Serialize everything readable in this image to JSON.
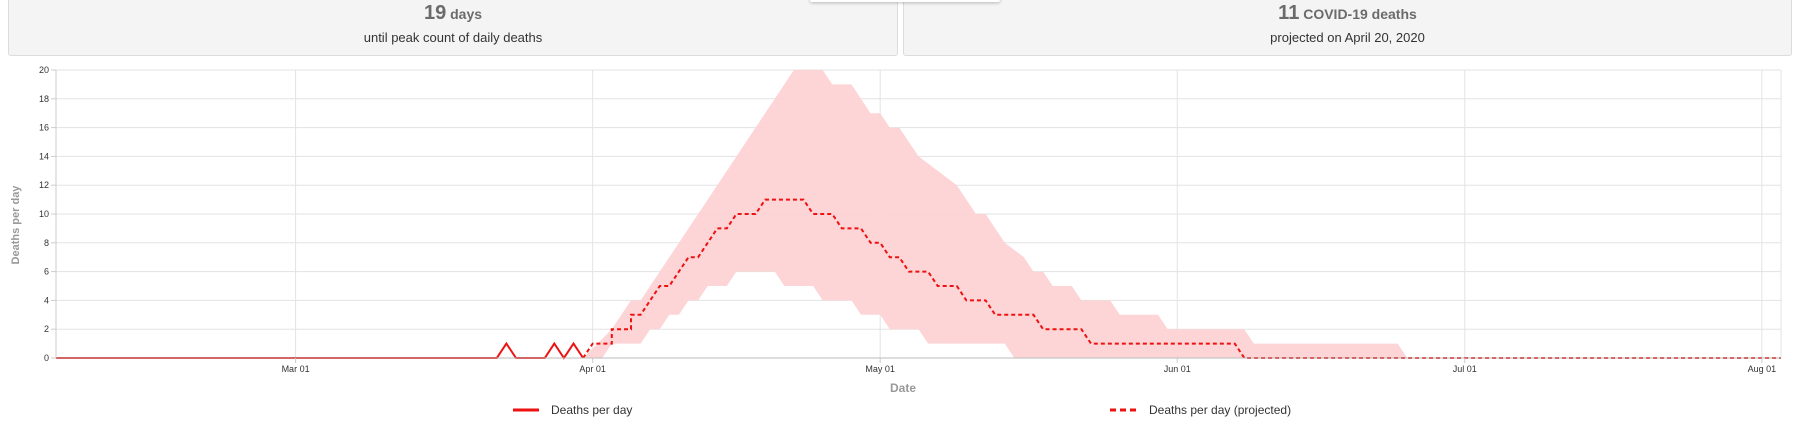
{
  "cards": [
    {
      "value": "19",
      "unit": "days",
      "caption": "until peak count of daily deaths"
    },
    {
      "value": "11",
      "unit": "COVID-19 deaths",
      "caption": "projected on April 20, 2020"
    }
  ],
  "colors": {
    "observed": "#ee1111",
    "projected": "#ee1111",
    "band": "#fdd3d5",
    "grid": "#e3e3e3",
    "axis": "#999999"
  },
  "chart_data": {
    "type": "line",
    "xlabel": "Date",
    "ylabel": "Deaths per day",
    "ylim": [
      0,
      20
    ],
    "yticks": [
      0,
      2,
      4,
      6,
      8,
      10,
      12,
      14,
      16,
      18,
      20
    ],
    "xlim": [
      "2020-02-05",
      "2020-08-03"
    ],
    "xticks": [
      {
        "date": "2020-03-01",
        "label": "Mar 01"
      },
      {
        "date": "2020-04-01",
        "label": "Apr 01"
      },
      {
        "date": "2020-05-01",
        "label": "May 01"
      },
      {
        "date": "2020-06-01",
        "label": "Jun 01"
      },
      {
        "date": "2020-07-01",
        "label": "Jul 01"
      },
      {
        "date": "2020-08-01",
        "label": "Aug 01"
      }
    ],
    "grid": true,
    "legend": "bottom",
    "series": [
      {
        "name": "Deaths per day",
        "style": "solid",
        "points": [
          [
            "2020-02-05",
            0
          ],
          [
            "2020-03-22",
            0
          ],
          [
            "2020-03-23",
            1
          ],
          [
            "2020-03-24",
            0
          ],
          [
            "2020-03-27",
            0
          ],
          [
            "2020-03-28",
            1
          ],
          [
            "2020-03-29",
            0
          ],
          [
            "2020-03-30",
            1
          ],
          [
            "2020-03-31",
            0
          ]
        ]
      },
      {
        "name": "Deaths per day (projected)",
        "style": "dashed",
        "points": [
          [
            "2020-03-31",
            0
          ],
          [
            "2020-04-01",
            1
          ],
          [
            "2020-04-03",
            1
          ],
          [
            "2020-04-03",
            2
          ],
          [
            "2020-04-05",
            2
          ],
          [
            "2020-04-05",
            3
          ],
          [
            "2020-04-06",
            3
          ],
          [
            "2020-04-07",
            4
          ],
          [
            "2020-04-08",
            5
          ],
          [
            "2020-04-09",
            5
          ],
          [
            "2020-04-10",
            6
          ],
          [
            "2020-04-11",
            7
          ],
          [
            "2020-04-12",
            7
          ],
          [
            "2020-04-13",
            8
          ],
          [
            "2020-04-14",
            9
          ],
          [
            "2020-04-15",
            9
          ],
          [
            "2020-04-16",
            10
          ],
          [
            "2020-04-18",
            10
          ],
          [
            "2020-04-19",
            11
          ],
          [
            "2020-04-23",
            11
          ],
          [
            "2020-04-24",
            10
          ],
          [
            "2020-04-26",
            10
          ],
          [
            "2020-04-27",
            9
          ],
          [
            "2020-04-29",
            9
          ],
          [
            "2020-04-30",
            8
          ],
          [
            "2020-05-01",
            8
          ],
          [
            "2020-05-02",
            7
          ],
          [
            "2020-05-03",
            7
          ],
          [
            "2020-05-04",
            6
          ],
          [
            "2020-05-06",
            6
          ],
          [
            "2020-05-07",
            5
          ],
          [
            "2020-05-09",
            5
          ],
          [
            "2020-05-10",
            4
          ],
          [
            "2020-05-12",
            4
          ],
          [
            "2020-05-13",
            3
          ],
          [
            "2020-05-17",
            3
          ],
          [
            "2020-05-18",
            2
          ],
          [
            "2020-05-22",
            2
          ],
          [
            "2020-05-23",
            1
          ],
          [
            "2020-06-07",
            1
          ],
          [
            "2020-06-08",
            0
          ],
          [
            "2020-08-03",
            0
          ]
        ]
      }
    ],
    "uncertainty_band": {
      "upper": [
        [
          "2020-03-31",
          0
        ],
        [
          "2020-04-03",
          2
        ],
        [
          "2020-04-04",
          3
        ],
        [
          "2020-04-05",
          4
        ],
        [
          "2020-04-06",
          4
        ],
        [
          "2020-04-11",
          9
        ],
        [
          "2020-04-13",
          11
        ],
        [
          "2020-04-18",
          16
        ],
        [
          "2020-04-20",
          18
        ],
        [
          "2020-04-21",
          19
        ],
        [
          "2020-04-22",
          20
        ],
        [
          "2020-04-25",
          20
        ],
        [
          "2020-04-26",
          19
        ],
        [
          "2020-04-28",
          19
        ],
        [
          "2020-04-29",
          18
        ],
        [
          "2020-04-30",
          17
        ],
        [
          "2020-05-01",
          17
        ],
        [
          "2020-05-02",
          16
        ],
        [
          "2020-05-03",
          16
        ],
        [
          "2020-05-05",
          14
        ],
        [
          "2020-05-07",
          13
        ],
        [
          "2020-05-09",
          12
        ],
        [
          "2020-05-10",
          11
        ],
        [
          "2020-05-11",
          10
        ],
        [
          "2020-05-12",
          10
        ],
        [
          "2020-05-13",
          9
        ],
        [
          "2020-05-14",
          8
        ],
        [
          "2020-05-16",
          7
        ],
        [
          "2020-05-17",
          6
        ],
        [
          "2020-05-18",
          6
        ],
        [
          "2020-05-19",
          5
        ],
        [
          "2020-05-21",
          5
        ],
        [
          "2020-05-22",
          4
        ],
        [
          "2020-05-25",
          4
        ],
        [
          "2020-05-26",
          3
        ],
        [
          "2020-05-30",
          3
        ],
        [
          "2020-05-31",
          2
        ],
        [
          "2020-06-08",
          2
        ],
        [
          "2020-06-09",
          1
        ],
        [
          "2020-06-24",
          1
        ],
        [
          "2020-06-25",
          0
        ]
      ],
      "lower": [
        [
          "2020-03-31",
          0
        ],
        [
          "2020-04-02",
          0
        ],
        [
          "2020-04-03",
          1
        ],
        [
          "2020-04-06",
          1
        ],
        [
          "2020-04-07",
          2
        ],
        [
          "2020-04-08",
          2
        ],
        [
          "2020-04-09",
          3
        ],
        [
          "2020-04-10",
          3
        ],
        [
          "2020-04-11",
          4
        ],
        [
          "2020-04-12",
          4
        ],
        [
          "2020-04-13",
          5
        ],
        [
          "2020-04-15",
          5
        ],
        [
          "2020-04-16",
          6
        ],
        [
          "2020-04-20",
          6
        ],
        [
          "2020-04-21",
          5
        ],
        [
          "2020-04-24",
          5
        ],
        [
          "2020-04-25",
          4
        ],
        [
          "2020-04-28",
          4
        ],
        [
          "2020-04-29",
          3
        ],
        [
          "2020-05-01",
          3
        ],
        [
          "2020-05-02",
          2
        ],
        [
          "2020-05-05",
          2
        ],
        [
          "2020-05-06",
          1
        ],
        [
          "2020-05-14",
          1
        ],
        [
          "2020-05-15",
          0
        ]
      ]
    }
  }
}
